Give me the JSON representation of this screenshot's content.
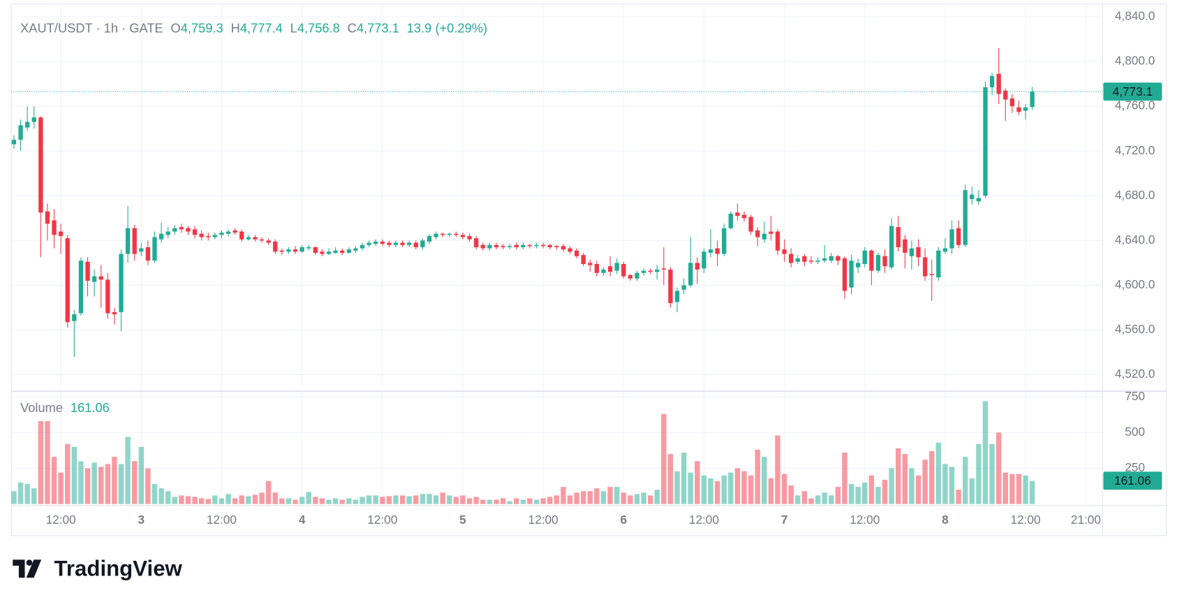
{
  "chart_data": {
    "type": "candlestick",
    "legend": {
      "symbol": "XAUT/USDT · 1h · GATE",
      "fields": [
        {
          "key": "O",
          "value": "4,759.3"
        },
        {
          "key": "H",
          "value": "4,777.4"
        },
        {
          "key": "L",
          "value": "4,756.8"
        },
        {
          "key": "C",
          "value": "4,773.1"
        }
      ],
      "change": "13.9 (+0.29%)"
    },
    "up_color": "#22ab94",
    "down_color": "#f23645",
    "grid": true,
    "xlim": [
      -0.4,
      162.5
    ],
    "xticks": [
      {
        "value": 7,
        "label": "12:00"
      },
      {
        "value": 19,
        "label": "3"
      },
      {
        "value": 31,
        "label": "12:00"
      },
      {
        "value": 43,
        "label": "4"
      },
      {
        "value": 55,
        "label": "12:00"
      },
      {
        "value": 67,
        "label": "5"
      },
      {
        "value": 79,
        "label": "12:00"
      },
      {
        "value": 91,
        "label": "6"
      },
      {
        "value": 103,
        "label": "12:00"
      },
      {
        "value": 115,
        "label": "7"
      },
      {
        "value": 127,
        "label": "12:00"
      },
      {
        "value": 139,
        "label": "8"
      },
      {
        "value": 151,
        "label": "12:00"
      },
      {
        "value": 160,
        "label": "21:00"
      }
    ],
    "ylim": [
      4506.6,
      4851.4
    ],
    "yticks": [
      {
        "value": 4520,
        "label": "4,520.0"
      },
      {
        "value": 4560,
        "label": "4,560.0"
      },
      {
        "value": 4600,
        "label": "4,600.0"
      },
      {
        "value": 4640,
        "label": "4,640.0"
      },
      {
        "value": 4680,
        "label": "4,680.0"
      },
      {
        "value": 4720,
        "label": "4,720.0"
      },
      {
        "value": 4760,
        "label": "4,760.0"
      },
      {
        "value": 4800,
        "label": "4,800.0"
      },
      {
        "value": 4840,
        "label": "4,840.0"
      }
    ],
    "candles": [
      [
        4726,
        4734,
        4722,
        4730
      ],
      [
        4730,
        4748,
        4720,
        4743
      ],
      [
        4741,
        4760,
        4738,
        4746
      ],
      [
        4746,
        4760,
        4740,
        4750
      ],
      [
        4750,
        4751,
        4625,
        4665
      ],
      [
        4666,
        4673,
        4640,
        4655
      ],
      [
        4658,
        4668,
        4633,
        4645
      ],
      [
        4648,
        4655,
        4628,
        4644
      ],
      [
        4642,
        4645,
        4562,
        4567
      ],
      [
        4568,
        4578,
        4536,
        4574
      ],
      [
        4575,
        4625,
        4573,
        4622
      ],
      [
        4621,
        4625,
        4590,
        4604
      ],
      [
        4603,
        4614,
        4590,
        4608
      ],
      [
        4608,
        4618,
        4580,
        4605
      ],
      [
        4605,
        4611,
        4570,
        4575
      ],
      [
        4576,
        4580,
        4565,
        4574
      ],
      [
        4576,
        4632,
        4559,
        4628
      ],
      [
        4628,
        4671,
        4620,
        4651
      ],
      [
        4651,
        4654,
        4622,
        4628
      ],
      [
        4630,
        4638,
        4626,
        4633
      ],
      [
        4634,
        4640,
        4618,
        4622
      ],
      [
        4622,
        4648,
        4620,
        4643
      ],
      [
        4641,
        4656,
        4638,
        4646
      ],
      [
        4645,
        4652,
        4642,
        4648
      ],
      [
        4648,
        4654,
        4645,
        4651
      ],
      [
        4652,
        4655,
        4647,
        4650
      ],
      [
        4651,
        4653,
        4645,
        4648
      ],
      [
        4650,
        4653,
        4642,
        4645
      ],
      [
        4646,
        4649,
        4640,
        4643
      ],
      [
        4644,
        4647,
        4640,
        4643
      ],
      [
        4643,
        4647,
        4641,
        4645
      ],
      [
        4645,
        4649,
        4642,
        4647
      ],
      [
        4646,
        4650,
        4644,
        4648
      ],
      [
        4649,
        4651,
        4645,
        4647
      ],
      [
        4648,
        4650,
        4639,
        4641
      ],
      [
        4641,
        4645,
        4640,
        4643
      ],
      [
        4643,
        4645,
        4639,
        4641
      ],
      [
        4641,
        4643,
        4638,
        4640
      ],
      [
        4640,
        4642,
        4636,
        4638
      ],
      [
        4639,
        4641,
        4628,
        4630
      ],
      [
        4631,
        4633,
        4627,
        4630
      ],
      [
        4630,
        4634,
        4628,
        4632
      ],
      [
        4632,
        4635,
        4628,
        4630
      ],
      [
        4630,
        4636,
        4629,
        4634
      ],
      [
        4633,
        4636,
        4631,
        4634
      ],
      [
        4634,
        4635,
        4627,
        4629
      ],
      [
        4630,
        4632,
        4626,
        4628
      ],
      [
        4628,
        4633,
        4627,
        4630
      ],
      [
        4629,
        4634,
        4628,
        4631
      ],
      [
        4631,
        4633,
        4627,
        4629
      ],
      [
        4629,
        4634,
        4628,
        4632
      ],
      [
        4631,
        4635,
        4629,
        4633
      ],
      [
        4633,
        4638,
        4631,
        4636
      ],
      [
        4636,
        4640,
        4634,
        4638
      ],
      [
        4637,
        4641,
        4635,
        4639
      ],
      [
        4639,
        4641,
        4635,
        4637
      ],
      [
        4638,
        4640,
        4634,
        4636
      ],
      [
        4636,
        4640,
        4634,
        4638
      ],
      [
        4638,
        4640,
        4634,
        4636
      ],
      [
        4636,
        4640,
        4634,
        4638
      ],
      [
        4638,
        4640,
        4632,
        4634
      ],
      [
        4634,
        4642,
        4632,
        4640
      ],
      [
        4639,
        4646,
        4637,
        4644
      ],
      [
        4643,
        4648,
        4641,
        4646
      ],
      [
        4646,
        4647,
        4643,
        4645
      ],
      [
        4645,
        4647,
        4643,
        4646
      ],
      [
        4646,
        4648,
        4643,
        4645
      ],
      [
        4645,
        4647,
        4641,
        4643
      ],
      [
        4644,
        4646,
        4639,
        4641
      ],
      [
        4642,
        4644,
        4632,
        4634
      ],
      [
        4636,
        4638,
        4631,
        4633
      ],
      [
        4633,
        4638,
        4631,
        4636
      ],
      [
        4636,
        4638,
        4632,
        4634
      ],
      [
        4635,
        4637,
        4632,
        4634
      ],
      [
        4634,
        4637,
        4632,
        4635
      ],
      [
        4636,
        4638,
        4632,
        4634
      ],
      [
        4634,
        4638,
        4632,
        4636
      ],
      [
        4636,
        4637,
        4633,
        4635
      ],
      [
        4635,
        4638,
        4633,
        4636
      ],
      [
        4636,
        4638,
        4633,
        4635
      ],
      [
        4636,
        4637,
        4632,
        4634
      ],
      [
        4635,
        4636,
        4632,
        4634
      ],
      [
        4635,
        4637,
        4630,
        4632
      ],
      [
        4633,
        4635,
        4628,
        4630
      ],
      [
        4631,
        4633,
        4624,
        4626
      ],
      [
        4627,
        4629,
        4617,
        4619
      ],
      [
        4620,
        4623,
        4612,
        4618
      ],
      [
        4619,
        4622,
        4608,
        4611
      ],
      [
        4611,
        4616,
        4609,
        4614
      ],
      [
        4617,
        4626,
        4608,
        4612
      ],
      [
        4613,
        4624,
        4610,
        4620
      ],
      [
        4619,
        4621,
        4606,
        4608
      ],
      [
        4609,
        4610,
        4604,
        4606
      ],
      [
        4606,
        4613,
        4604,
        4611
      ],
      [
        4611,
        4615,
        4609,
        4613
      ],
      [
        4613,
        4615,
        4610,
        4612
      ],
      [
        4612,
        4618,
        4605,
        4614
      ],
      [
        4615,
        4634,
        4600,
        4614
      ],
      [
        4614,
        4616,
        4580,
        4584
      ],
      [
        4585,
        4598,
        4576,
        4595
      ],
      [
        4596,
        4606,
        4592,
        4600
      ],
      [
        4600,
        4643,
        4598,
        4620
      ],
      [
        4620,
        4625,
        4601,
        4614
      ],
      [
        4615,
        4633,
        4611,
        4630
      ],
      [
        4629,
        4650,
        4625,
        4632
      ],
      [
        4633,
        4640,
        4617,
        4628
      ],
      [
        4628,
        4655,
        4626,
        4651
      ],
      [
        4651,
        4666,
        4650,
        4664
      ],
      [
        4665,
        4673,
        4658,
        4662
      ],
      [
        4663,
        4666,
        4657,
        4660
      ],
      [
        4661,
        4663,
        4645,
        4648
      ],
      [
        4649,
        4652,
        4635,
        4643
      ],
      [
        4641,
        4657,
        4638,
        4646
      ],
      [
        4648,
        4662,
        4640,
        4646
      ],
      [
        4648,
        4650,
        4627,
        4631
      ],
      [
        4632,
        4641,
        4621,
        4628
      ],
      [
        4628,
        4633,
        4616,
        4620
      ],
      [
        4621,
        4627,
        4619,
        4624
      ],
      [
        4626,
        4628,
        4617,
        4621
      ],
      [
        4622,
        4626,
        4619,
        4621
      ],
      [
        4621,
        4625,
        4619,
        4622
      ],
      [
        4622,
        4636,
        4620,
        4624
      ],
      [
        4622,
        4629,
        4620,
        4626
      ],
      [
        4626,
        4627,
        4618,
        4622
      ],
      [
        4624,
        4626,
        4588,
        4595
      ],
      [
        4598,
        4627,
        4592,
        4622
      ],
      [
        4616,
        4624,
        4611,
        4620
      ],
      [
        4619,
        4634,
        4616,
        4631
      ],
      [
        4631,
        4632,
        4600,
        4613
      ],
      [
        4613,
        4629,
        4611,
        4627
      ],
      [
        4626,
        4632,
        4611,
        4617
      ],
      [
        4616,
        4660,
        4614,
        4653
      ],
      [
        4652,
        4662,
        4630,
        4634
      ],
      [
        4641,
        4645,
        4615,
        4629
      ],
      [
        4626,
        4640,
        4614,
        4633
      ],
      [
        4634,
        4641,
        4617,
        4625
      ],
      [
        4625,
        4633,
        4604,
        4608
      ],
      [
        4610,
        4623,
        4586,
        4609
      ],
      [
        4607,
        4634,
        4604,
        4631
      ],
      [
        4630,
        4642,
        4628,
        4633
      ],
      [
        4633,
        4658,
        4628,
        4650
      ],
      [
        4651,
        4658,
        4633,
        4636
      ],
      [
        4636,
        4690,
        4634,
        4685
      ],
      [
        4677,
        4688,
        4672,
        4681
      ],
      [
        4675,
        4685,
        4672,
        4678
      ],
      [
        4680,
        4782,
        4678,
        4777
      ],
      [
        4777,
        4790,
        4770,
        4787
      ],
      [
        4789,
        4812,
        4762,
        4771
      ],
      [
        4774,
        4776,
        4747,
        4766
      ],
      [
        4767,
        4771,
        4754,
        4760
      ],
      [
        4759,
        4765,
        4752,
        4755
      ],
      [
        4756,
        4762,
        4748,
        4759
      ],
      [
        4759.3,
        4777.4,
        4756.8,
        4773.1
      ]
    ],
    "volume": {
      "name": "Volume",
      "values": [
        90,
        150,
        140,
        110,
        580,
        580,
        330,
        220,
        420,
        400,
        300,
        250,
        290,
        260,
        280,
        330,
        280,
        470,
        300,
        400,
        250,
        140,
        110,
        90,
        50,
        60,
        55,
        50,
        40,
        35,
        60,
        40,
        70,
        40,
        60,
        55,
        65,
        80,
        160,
        80,
        40,
        40,
        30,
        50,
        85,
        50,
        40,
        30,
        40,
        30,
        40,
        30,
        50,
        60,
        60,
        50,
        55,
        60,
        60,
        55,
        60,
        70,
        70,
        60,
        80,
        60,
        50,
        60,
        40,
        50,
        30,
        30,
        30,
        40,
        20,
        40,
        30,
        40,
        30,
        40,
        50,
        60,
        120,
        60,
        80,
        90,
        90,
        110,
        90,
        120,
        120,
        80,
        60,
        70,
        80,
        60,
        100,
        630,
        350,
        230,
        360,
        220,
        300,
        200,
        180,
        160,
        200,
        220,
        250,
        230,
        200,
        380,
        330,
        180,
        480,
        210,
        130,
        60,
        90,
        40,
        60,
        80,
        60,
        120,
        360,
        140,
        120,
        150,
        200,
        120,
        170,
        250,
        390,
        350,
        250,
        200,
        310,
        370,
        430,
        280,
        260,
        100,
        330,
        180,
        420,
        720,
        420,
        500,
        220,
        210,
        210,
        200,
        161.06
      ]
    },
    "y2lim": [
      0,
      779
    ],
    "y2ticks": [
      250,
      500,
      750
    ],
    "brand": "TradingView"
  }
}
